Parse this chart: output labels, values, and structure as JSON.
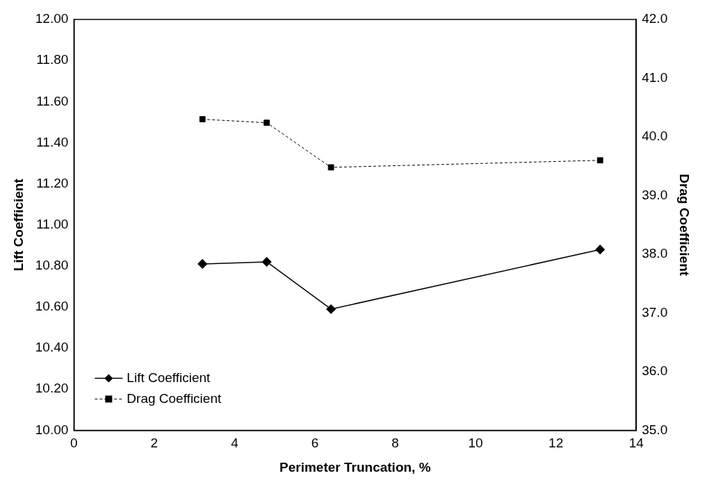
{
  "chart_data": {
    "type": "line",
    "xlabel": "Perimeter Truncation, %",
    "ylabel": "Lift Coefficient",
    "y2label": "Drag Coefficient",
    "x": [
      3.2,
      4.8,
      6.4,
      13.1
    ],
    "series": [
      {
        "name": "Lift Coefficient",
        "color": "#000000",
        "values": [
          10.81,
          10.82,
          10.59,
          10.88
        ],
        "marker": "diamond",
        "line_style": "solid"
      },
      {
        "name": "Drag Coefficient",
        "color": "#000000",
        "values": [
          40.3,
          40.24,
          39.48,
          39.6
        ],
        "axis": "y2",
        "marker": "square",
        "line_style": "dashed"
      }
    ],
    "xlim": [
      0,
      14
    ],
    "xticks": [
      0,
      2,
      4,
      6,
      8,
      10,
      12,
      14
    ],
    "ylim": [
      10,
      12
    ],
    "yticks": [
      {
        "value": 10,
        "label": "10.00"
      },
      {
        "value": 10.2,
        "label": "10.20"
      },
      {
        "value": 10.4,
        "label": "10.40"
      },
      {
        "value": 10.6,
        "label": "10.60"
      },
      {
        "value": 10.8,
        "label": "10.80"
      },
      {
        "value": 11,
        "label": "11.00"
      },
      {
        "value": 11.2,
        "label": "11.20"
      },
      {
        "value": 11.4,
        "label": "11.40"
      },
      {
        "value": 11.6,
        "label": "11.60"
      },
      {
        "value": 11.8,
        "label": "11.80"
      },
      {
        "value": 12,
        "label": "12.00"
      }
    ],
    "y2lim": [
      35,
      42
    ],
    "y2ticks": [
      {
        "value": 35,
        "label": "35.0"
      },
      {
        "value": 36,
        "label": "36.0"
      },
      {
        "value": 37,
        "label": "37.0"
      },
      {
        "value": 38,
        "label": "38.0"
      },
      {
        "value": 39,
        "label": "39.0"
      },
      {
        "value": 40,
        "label": "40.0"
      },
      {
        "value": 41,
        "label": "41.0"
      },
      {
        "value": 42,
        "label": "42.0"
      }
    ],
    "grid": false,
    "legend": "bottom left"
  }
}
